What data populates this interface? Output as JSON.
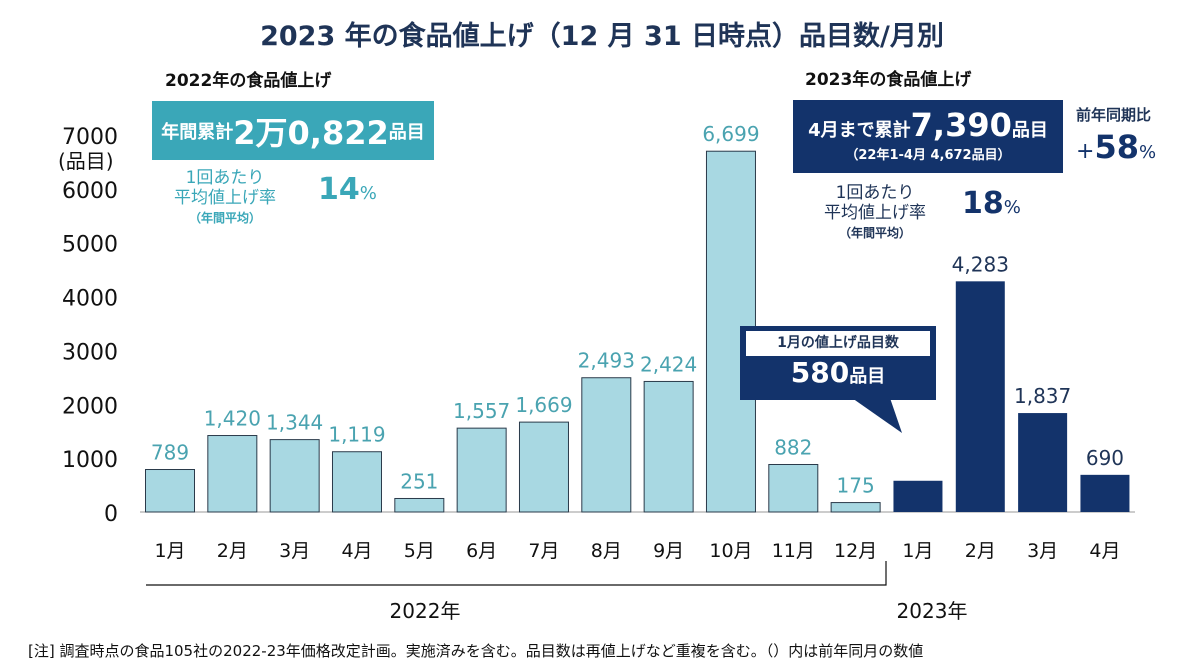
{
  "chart_data": {
    "type": "bar",
    "title": "2023 年の食品値上げ（12 月 31 日時点）品目数/月別",
    "ylabel": "(品目)",
    "ylim": [
      0,
      7000
    ],
    "yticks": [
      "0",
      "1000",
      "2000",
      "3000",
      "4000",
      "5000",
      "6000",
      "7000"
    ],
    "categories": [
      "1月",
      "2月",
      "3月",
      "4月",
      "5月",
      "6月",
      "7月",
      "8月",
      "9月",
      "10月",
      "11月",
      "12月",
      "1月",
      "2月",
      "3月",
      "4月"
    ],
    "years": [
      {
        "label": "2022年"
      },
      {
        "label": "2023年"
      }
    ],
    "series": [
      {
        "values": [
          789,
          1420,
          1344,
          1119,
          251,
          1557,
          1669,
          2493,
          2424,
          6699,
          882,
          175,
          580,
          4283,
          1837,
          690
        ],
        "labels": [
          "789",
          "1,420",
          "1,344",
          "1,119",
          "251",
          "1,557",
          "1,669",
          "2,493",
          "2,424",
          "6,699",
          "882",
          "175",
          "",
          "4,283",
          "1,837",
          "690"
        ],
        "year": [
          "2022",
          "2022",
          "2022",
          "2022",
          "2022",
          "2022",
          "2022",
          "2022",
          "2022",
          "2022",
          "2022",
          "2022",
          "2023",
          "2023",
          "2023",
          "2023"
        ]
      }
    ],
    "colors": {
      "2022": "#a8d8e2",
      "2022_label": "#4aa3b0",
      "2023": "#13336b",
      "2023_label": "#1f3457"
    },
    "grid": false
  },
  "panel2022": {
    "heading": "2022年の食品値上げ",
    "total_prefix": "年間累計",
    "total_value": "2万0,822",
    "total_unit": "品目",
    "rate_line1": "1回あたり",
    "rate_line2": "平均値上げ率",
    "rate_note": "（年間平均）",
    "rate_value": "14",
    "rate_unit": "%"
  },
  "panel2023": {
    "heading": "2023年の食品値上げ",
    "total_prefix": "4月まで累計",
    "total_value": "7,390",
    "total_unit": "品目",
    "prev": "（22年1-4月 4,672品目）",
    "rate_line1": "1回あたり",
    "rate_line2": "平均値上げ率",
    "rate_note": "（年間平均）",
    "rate_value": "18",
    "rate_unit": "%",
    "yoy_label": "前年同期比",
    "yoy_sign": "+",
    "yoy_value": "58",
    "yoy_unit": "%"
  },
  "callout": {
    "label": "1月の値上げ品目数",
    "value": "580",
    "unit": "品目"
  },
  "note": "[注]  調査時点の食品105社の2022-23年価格改定計画。実施済みを含む。品目数は再値上げなど重複を含む。（）内は前年同月の数値"
}
